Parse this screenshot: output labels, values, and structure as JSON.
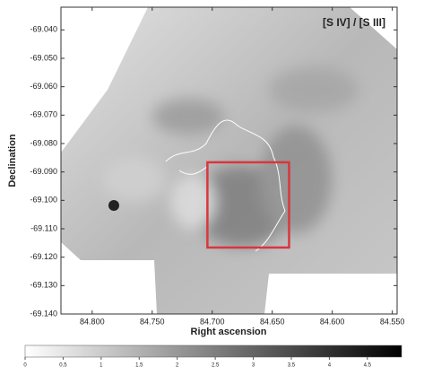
{
  "chart_data": {
    "type": "image",
    "title": "[S IV] / [S III]",
    "x_label": "Right ascension",
    "y_label": "Declination",
    "xlim": [
      84.826,
      84.546
    ],
    "ylim": [
      -69.032,
      -69.14
    ],
    "xticks": [
      {
        "value": 84.8,
        "label": "84.800"
      },
      {
        "value": 84.75,
        "label": "84.750"
      },
      {
        "value": 84.7,
        "label": "84.700"
      },
      {
        "value": 84.65,
        "label": "84.650"
      },
      {
        "value": 84.6,
        "label": "84.600"
      },
      {
        "value": 84.55,
        "label": "84.550"
      }
    ],
    "yticks": [
      {
        "value": -69.04,
        "label": "-69.040"
      },
      {
        "value": -69.05,
        "label": "-69.050"
      },
      {
        "value": -69.06,
        "label": "-69.060"
      },
      {
        "value": -69.07,
        "label": "-69.070"
      },
      {
        "value": -69.08,
        "label": "-69.080"
      },
      {
        "value": -69.09,
        "label": "-69.090"
      },
      {
        "value": -69.1,
        "label": "-69.100"
      },
      {
        "value": -69.11,
        "label": "-69.110"
      },
      {
        "value": -69.12,
        "label": "-69.120"
      },
      {
        "value": -69.13,
        "label": "-69.130"
      },
      {
        "value": -69.14,
        "label": "-69.140"
      }
    ],
    "box": {
      "color": "#d9363e",
      "x": [
        84.704,
        84.636
      ],
      "y": [
        -69.0866,
        -69.1166
      ]
    },
    "colorbar": {
      "clim": [
        0,
        4.95
      ],
      "ticks": [
        0,
        0.5,
        1,
        1.5,
        2,
        2.5,
        3,
        3.5,
        4,
        4.5
      ]
    }
  }
}
